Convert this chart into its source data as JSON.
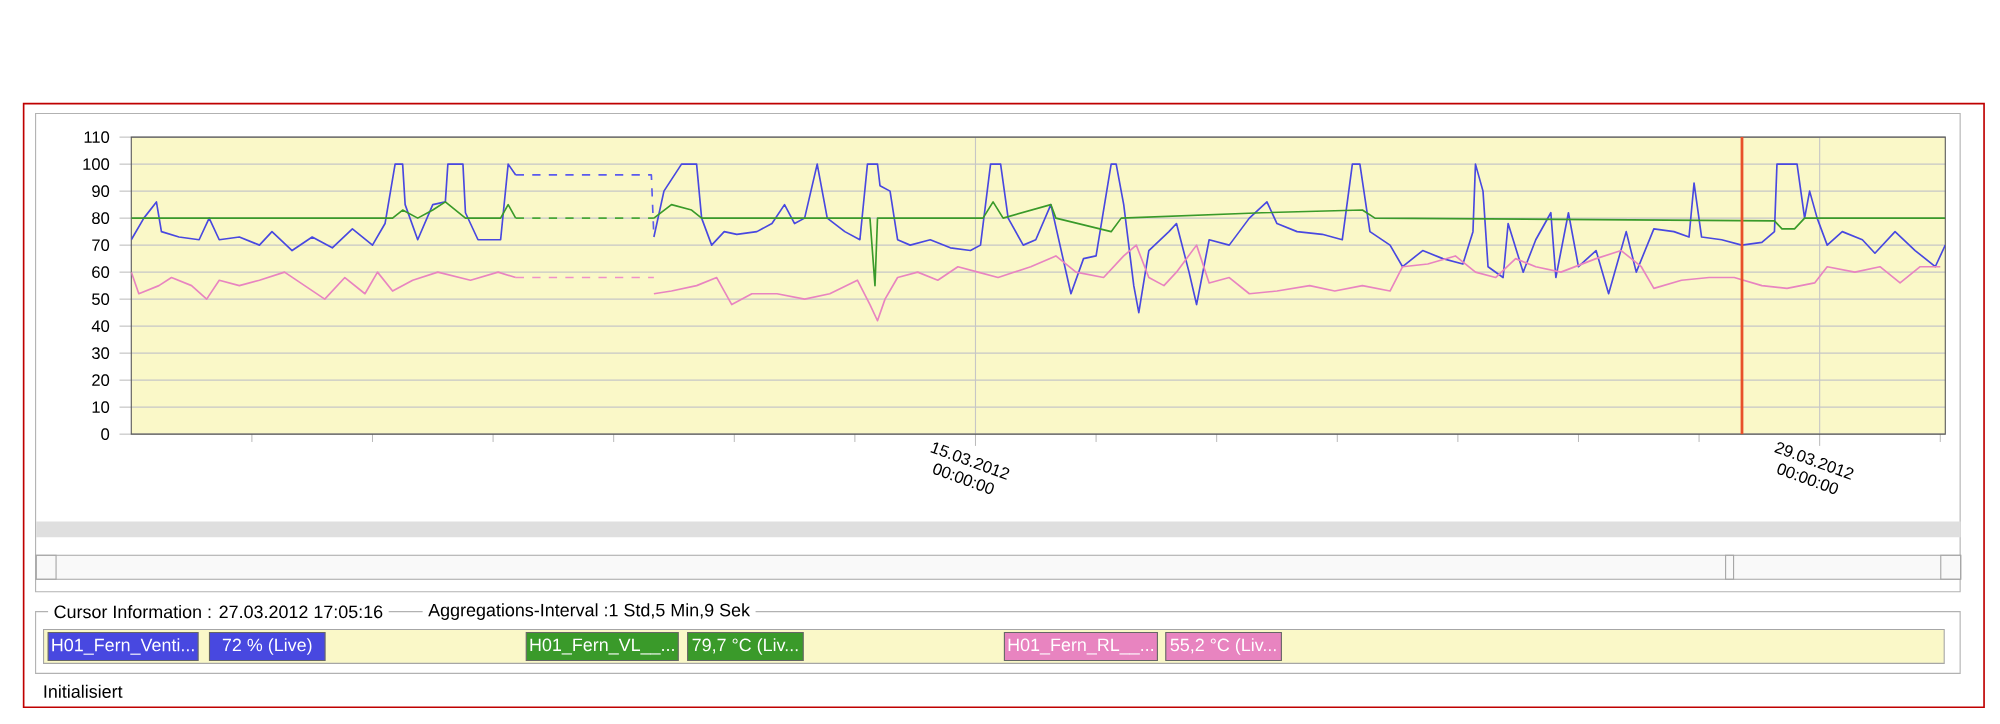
{
  "chart_data": {
    "type": "line",
    "xlim": [
      "2012-03-01T00:00",
      "2012-03-31T02:00"
    ],
    "ylim": [
      0,
      110
    ],
    "xticks": [
      {
        "value": "2012-03-03",
        "label": null
      },
      {
        "value": "2012-03-05",
        "label": null
      },
      {
        "value": "2012-03-07",
        "label": null
      },
      {
        "value": "2012-03-09",
        "label": null
      },
      {
        "value": "2012-03-11",
        "label": null
      },
      {
        "value": "2012-03-13",
        "label": null
      },
      {
        "value": "2012-03-15",
        "label": "15.03.2012 00:00:00"
      },
      {
        "value": "2012-03-17",
        "label": null
      },
      {
        "value": "2012-03-19",
        "label": null
      },
      {
        "value": "2012-03-21",
        "label": null
      },
      {
        "value": "2012-03-23",
        "label": null
      },
      {
        "value": "2012-03-25",
        "label": null
      },
      {
        "value": "2012-03-27",
        "label": null
      },
      {
        "value": "2012-03-29",
        "label": "29.03.2012 00:00:00"
      },
      {
        "value": "2012-03-31",
        "label": null
      }
    ],
    "yticks": [
      0,
      10,
      20,
      30,
      40,
      50,
      60,
      70,
      80,
      90,
      100,
      110
    ],
    "grid": true,
    "legend": "bottom",
    "ref_lines": [
      {
        "axis": "x",
        "value": "2012-03-27T17:05",
        "color": "#e8502a"
      }
    ],
    "annotations": [
      "Cursor Information : 27.03.2012 17:05:16",
      "Aggregations-Interval :1 Std,5 Min,9 Sek",
      "72 % (Live)",
      "79,7 °C (Liv...",
      "55,2 °C (Liv...",
      "Initialisiert"
    ],
    "series": [
      {
        "name": "H01_Fern_Venti...",
        "color": "#4848e0",
        "x": [
          "2012-03-01T00:00",
          "2012-03-01T05:00",
          "2012-03-01T10:00",
          "2012-03-01T12:00",
          "2012-03-01T19:00",
          "2012-03-02T03:00",
          "2012-03-02T07:00",
          "2012-03-02T11:00",
          "2012-03-02T19:00",
          "2012-03-03T03:00",
          "2012-03-03T08:00",
          "2012-03-03T16:00",
          "2012-03-04T00:00",
          "2012-03-04T08:00",
          "2012-03-04T16:00",
          "2012-03-05T00:00",
          "2012-03-05T05:00",
          "2012-03-05T09:00",
          "2012-03-05T12:00",
          "2012-03-05T13:00",
          "2012-03-05T18:00",
          "2012-03-06T00:00",
          "2012-03-06T05:00",
          "2012-03-06T06:00",
          "2012-03-06T12:00",
          "2012-03-06T13:00",
          "2012-03-06T18:00",
          "2012-03-07T03:00",
          "2012-03-07T06:00",
          "2012-03-07T09:00",
          "2012-03-09T15:00",
          "2012-03-09T16:00",
          "2012-03-09T20:00",
          "2012-03-10T03:00",
          "2012-03-10T09:00",
          "2012-03-10T11:00",
          "2012-03-10T15:00",
          "2012-03-10T20:00",
          "2012-03-11T01:00",
          "2012-03-11T09:00",
          "2012-03-11T15:00",
          "2012-03-11T20:00",
          "2012-03-12T00:00",
          "2012-03-12T04:00",
          "2012-03-12T09:00",
          "2012-03-12T13:00",
          "2012-03-12T20:00",
          "2012-03-13T02:00",
          "2012-03-13T05:00",
          "2012-03-13T09:00",
          "2012-03-13T10:00",
          "2012-03-13T14:00",
          "2012-03-13T17:00",
          "2012-03-13T22:00",
          "2012-03-14T06:00",
          "2012-03-14T14:00",
          "2012-03-14T22:00",
          "2012-03-15T02:00",
          "2012-03-15T06:00",
          "2012-03-15T10:00",
          "2012-03-15T13:00",
          "2012-03-15T19:00",
          "2012-03-16T00:00",
          "2012-03-16T06:00",
          "2012-03-16T14:00",
          "2012-03-16T19:00",
          "2012-03-17T00:00",
          "2012-03-17T06:00",
          "2012-03-17T08:00",
          "2012-03-17T11:00",
          "2012-03-17T15:00",
          "2012-03-17T17:00",
          "2012-03-17T21:00",
          "2012-03-18T05:00",
          "2012-03-18T08:00",
          "2012-03-18T13:00",
          "2012-03-18T16:00",
          "2012-03-18T21:00",
          "2012-03-19T05:00",
          "2012-03-19T13:00",
          "2012-03-19T20:00",
          "2012-03-20T00:00",
          "2012-03-20T08:00",
          "2012-03-20T18:00",
          "2012-03-21T02:00",
          "2012-03-21T06:00",
          "2012-03-21T09:00",
          "2012-03-21T13:00",
          "2012-03-21T21:00",
          "2012-03-22T02:00",
          "2012-03-22T10:00",
          "2012-03-22T18:00",
          "2012-03-23T02:00",
          "2012-03-23T06:00",
          "2012-03-23T07:00",
          "2012-03-23T10:00",
          "2012-03-23T12:00",
          "2012-03-23T18:00",
          "2012-03-23T20:00",
          "2012-03-24T02:00",
          "2012-03-24T07:00",
          "2012-03-24T13:00",
          "2012-03-24T15:00",
          "2012-03-24T20:00",
          "2012-03-25T00:00",
          "2012-03-25T07:00",
          "2012-03-25T12:00",
          "2012-03-25T19:00",
          "2012-03-25T23:00",
          "2012-03-26T06:00",
          "2012-03-26T14:00",
          "2012-03-26T20:00",
          "2012-03-26T22:00",
          "2012-03-27T01:00",
          "2012-03-27T09:00",
          "2012-03-27T17:00",
          "2012-03-28T01:00",
          "2012-03-28T06:00",
          "2012-03-28T07:00",
          "2012-03-28T15:00",
          "2012-03-28T18:00",
          "2012-03-28T20:00",
          "2012-03-28T23:00",
          "2012-03-29T03:00",
          "2012-03-29T09:00",
          "2012-03-29T17:00",
          "2012-03-29T22:00",
          "2012-03-30T06:00",
          "2012-03-30T14:00",
          "2012-03-30T22:00",
          "2012-03-31T02:00"
        ],
        "values": [
          72,
          80,
          86,
          75,
          73,
          72,
          80,
          72,
          73,
          70,
          75,
          68,
          73,
          69,
          76,
          70,
          78,
          100,
          100,
          85,
          72,
          85,
          86,
          100,
          100,
          82,
          72,
          72,
          100,
          96,
          null,
          73,
          90,
          100,
          100,
          80,
          70,
          75,
          74,
          75,
          78,
          85,
          78,
          80,
          100,
          80,
          75,
          72,
          100,
          100,
          92,
          90,
          72,
          70,
          72,
          69,
          68,
          70,
          100,
          100,
          80,
          70,
          72,
          85,
          52,
          65,
          66,
          100,
          100,
          85,
          55,
          45,
          68,
          75,
          78,
          60,
          48,
          72,
          70,
          80,
          86,
          78,
          75,
          74,
          72,
          100,
          100,
          75,
          70,
          62,
          68,
          65,
          63,
          75,
          100,
          90,
          62,
          58,
          78,
          60,
          72,
          82,
          58,
          82,
          62,
          68,
          52,
          75,
          60,
          76,
          75,
          73,
          93,
          73,
          72,
          70,
          71,
          75,
          100,
          100,
          80,
          90,
          80,
          70,
          75,
          72,
          67,
          75,
          68,
          62,
          70
        ]
      },
      {
        "name": "H01_Fern_VL__...",
        "color": "#3a9a2a",
        "x": [
          "2012-03-01T00:00",
          "2012-03-05T08:00",
          "2012-03-05T12:00",
          "2012-03-05T18:00",
          "2012-03-06T00:00",
          "2012-03-06T05:00",
          "2012-03-06T13:00",
          "2012-03-07T03:00",
          "2012-03-07T06:00",
          "2012-03-07T09:00",
          "2012-03-09T15:00",
          "2012-03-09T16:00",
          "2012-03-09T23:00",
          "2012-03-10T07:00",
          "2012-03-10T11:00",
          "2012-03-13T06:00",
          "2012-03-13T08:00",
          "2012-03-13T09:00",
          "2012-03-15T03:00",
          "2012-03-15T07:00",
          "2012-03-15T11:00",
          "2012-03-16T06:00",
          "2012-03-16T08:00",
          "2012-03-17T06:00",
          "2012-03-17T10:00",
          "2012-03-19T18:00",
          "2012-03-21T10:00",
          "2012-03-21T15:00",
          "2012-03-28T06:00",
          "2012-03-28T09:00",
          "2012-03-28T14:00",
          "2012-03-28T18:00",
          "2012-03-31T02:00"
        ],
        "values": [
          80,
          80,
          83,
          80,
          83,
          86,
          80,
          80,
          85,
          80,
          null,
          80,
          85,
          83,
          80,
          80,
          55,
          80,
          80,
          86,
          80,
          85,
          80,
          75,
          80,
          82,
          83,
          80,
          79,
          76,
          76,
          80,
          80
        ]
      },
      {
        "name": "H01_Fern_RL__...",
        "color": "#e884c0",
        "x": [
          "2012-03-01T00:00",
          "2012-03-01T03:00",
          "2012-03-01T11:00",
          "2012-03-01T16:00",
          "2012-03-02T00:00",
          "2012-03-02T06:00",
          "2012-03-02T11:00",
          "2012-03-02T19:00",
          "2012-03-03T03:00",
          "2012-03-03T13:00",
          "2012-03-03T21:00",
          "2012-03-04T05:00",
          "2012-03-04T13:00",
          "2012-03-04T21:00",
          "2012-03-05T02:00",
          "2012-03-05T08:00",
          "2012-03-05T16:00",
          "2012-03-06T02:00",
          "2012-03-06T15:00",
          "2012-03-07T02:00",
          "2012-03-07T09:00",
          "2012-03-09T15:00",
          "2012-03-09T16:00",
          "2012-03-09T23:00",
          "2012-03-10T09:00",
          "2012-03-10T17:00",
          "2012-03-10T23:00",
          "2012-03-11T07:00",
          "2012-03-11T17:00",
          "2012-03-12T04:00",
          "2012-03-12T14:00",
          "2012-03-13T01:00",
          "2012-03-13T06:00",
          "2012-03-13T09:00",
          "2012-03-13T12:00",
          "2012-03-13T17:00",
          "2012-03-14T01:00",
          "2012-03-14T09:00",
          "2012-03-14T17:00",
          "2012-03-15T01:00",
          "2012-03-15T09:00",
          "2012-03-15T22:00",
          "2012-03-16T08:00",
          "2012-03-16T16:00",
          "2012-03-17T03:00",
          "2012-03-17T11:00",
          "2012-03-17T16:00",
          "2012-03-17T21:00",
          "2012-03-18T03:00",
          "2012-03-18T08:00",
          "2012-03-18T16:00",
          "2012-03-18T21:00",
          "2012-03-19T05:00",
          "2012-03-19T13:00",
          "2012-03-20T00:00",
          "2012-03-20T13:00",
          "2012-03-20T23:00",
          "2012-03-21T10:00",
          "2012-03-21T21:00",
          "2012-03-22T02:00",
          "2012-03-22T12:00",
          "2012-03-22T23:00",
          "2012-03-23T07:00",
          "2012-03-23T15:00",
          "2012-03-23T23:00",
          "2012-03-24T07:00",
          "2012-03-24T17:00",
          "2012-03-25T07:00",
          "2012-03-25T17:00",
          "2012-03-26T01:00",
          "2012-03-26T06:00",
          "2012-03-26T17:00",
          "2012-03-27T04:00",
          "2012-03-27T14:00",
          "2012-03-28T01:00",
          "2012-03-28T11:00",
          "2012-03-28T22:00",
          "2012-03-29T03:00",
          "2012-03-29T14:00",
          "2012-03-30T00:00",
          "2012-03-30T08:00",
          "2012-03-30T16:00",
          "2012-03-31T00:00"
        ],
        "values": [
          60,
          52,
          55,
          58,
          55,
          50,
          57,
          55,
          57,
          60,
          55,
          50,
          58,
          52,
          60,
          53,
          57,
          60,
          57,
          60,
          58,
          null,
          52,
          53,
          55,
          58,
          48,
          52,
          52,
          50,
          52,
          57,
          48,
          42,
          50,
          58,
          60,
          57,
          62,
          60,
          58,
          62,
          66,
          60,
          58,
          66,
          70,
          58,
          55,
          60,
          70,
          56,
          58,
          52,
          53,
          55,
          53,
          55,
          53,
          62,
          63,
          66,
          60,
          58,
          65,
          62,
          60,
          65,
          68,
          62,
          54,
          57,
          58,
          58,
          55,
          54,
          56,
          62,
          60,
          62,
          56,
          62,
          62
        ]
      },
      {
        "color": "#5a5aee",
        "line_style": "dashed",
        "x": [
          "2012-03-07T09:00",
          "2012-03-09T15:00",
          "2012-03-09T16:00"
        ],
        "values": [
          96,
          96,
          73
        ]
      },
      {
        "color": "#48a838",
        "line_style": "dashed",
        "x": [
          "2012-03-07T09:00",
          "2012-03-09T16:00"
        ],
        "values": [
          80,
          80
        ]
      },
      {
        "color": "#f090c8",
        "line_style": "dashed",
        "x": [
          "2012-03-07T09:00",
          "2012-03-09T16:00"
        ],
        "values": [
          58,
          58
        ]
      }
    ]
  }
}
